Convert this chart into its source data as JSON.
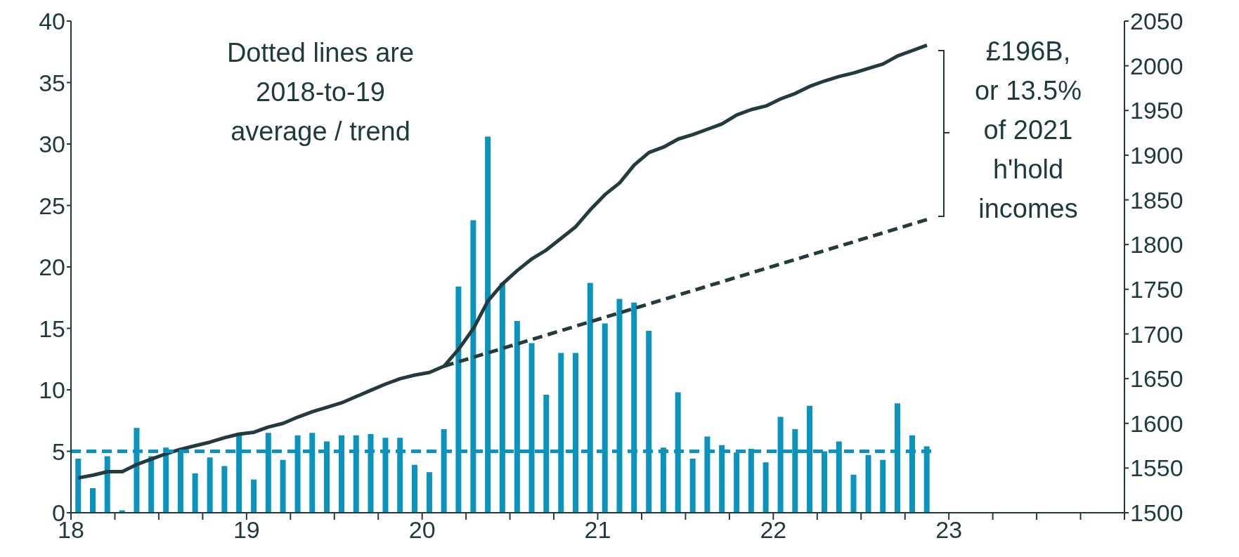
{
  "chart_data": {
    "type": "bar",
    "x": [
      2018.042,
      2018.125,
      2018.208,
      2018.292,
      2018.375,
      2018.458,
      2018.542,
      2018.625,
      2018.708,
      2018.792,
      2018.875,
      2018.958,
      2019.042,
      2019.125,
      2019.208,
      2019.292,
      2019.375,
      2019.458,
      2019.542,
      2019.625,
      2019.708,
      2019.792,
      2019.875,
      2019.958,
      2020.042,
      2020.125,
      2020.208,
      2020.292,
      2020.375,
      2020.458,
      2020.542,
      2020.625,
      2020.708,
      2020.792,
      2020.875,
      2020.958,
      2021.042,
      2021.125,
      2021.208,
      2021.292,
      2021.375,
      2021.458,
      2021.542,
      2021.625,
      2021.708,
      2021.792,
      2021.875,
      2021.958,
      2022.042,
      2022.125,
      2022.208,
      2022.292,
      2022.375,
      2022.458,
      2022.542,
      2022.625,
      2022.708,
      2022.792,
      2022.875
    ],
    "series": [
      {
        "color": "#0a93bd",
        "values": [
          4.4,
          2.0,
          4.6,
          0.2,
          6.9,
          4.6,
          5.3,
          5.0,
          3.2,
          4.5,
          3.8,
          6.5,
          2.7,
          6.5,
          4.3,
          6.3,
          6.5,
          5.8,
          6.3,
          6.3,
          6.4,
          6.1,
          6.1,
          3.9,
          3.3,
          6.8,
          18.4,
          23.8,
          30.6,
          18.7,
          15.6,
          13.8,
          9.6,
          13.0,
          13.0,
          18.7,
          15.4,
          17.4,
          17.1,
          14.8,
          5.3,
          9.8,
          4.4,
          6.2,
          5.5,
          4.9,
          5.2,
          4.1,
          7.8,
          6.8,
          8.7,
          5.0,
          5.8,
          3.1,
          4.7,
          4.3,
          8.9,
          6.3,
          5.4
        ]
      },
      {
        "type": "line",
        "axis": "y2",
        "color": "#243b3d",
        "values": [
          1539,
          1542,
          1546,
          1546,
          1554,
          1560,
          1566,
          1571,
          1575,
          1579,
          1584,
          1588,
          1590,
          1596,
          1600,
          1607,
          1613,
          1618,
          1623,
          1630,
          1637,
          1644,
          1650,
          1654,
          1657,
          1664,
          1683,
          1706,
          1737,
          1756,
          1771,
          1784,
          1794,
          1807,
          1820,
          1839,
          1856,
          1869,
          1889,
          1903,
          1909,
          1918,
          1923,
          1929,
          1935,
          1945,
          1951,
          1955,
          1963,
          1969,
          1977,
          1983,
          1988,
          1992,
          1997,
          2002,
          2011,
          2017,
          2023
        ]
      },
      {
        "type": "line",
        "axis": "y2",
        "color": "#243b3d",
        "line_style": "dashed",
        "x": [
          2020.125,
          2022.875
        ],
        "values": [
          1664,
          1828
        ]
      },
      {
        "type": "line",
        "color": "#0a93bd",
        "line_style": "dashed",
        "x": [
          2018,
          2022.92
        ],
        "values": [
          5,
          5
        ]
      }
    ],
    "xlim": [
      2018,
      2024
    ],
    "xticks": [
      {
        "value": 2018,
        "label": "18"
      },
      {
        "value": 2018.25,
        "label": null
      },
      {
        "value": 2018.5,
        "label": null
      },
      {
        "value": 2018.75,
        "label": null
      },
      {
        "value": 2019,
        "label": "19"
      },
      {
        "value": 2019.25,
        "label": null
      },
      {
        "value": 2019.5,
        "label": null
      },
      {
        "value": 2019.75,
        "label": null
      },
      {
        "value": 2020,
        "label": "20"
      },
      {
        "value": 2020.25,
        "label": null
      },
      {
        "value": 2020.5,
        "label": null
      },
      {
        "value": 2020.75,
        "label": null
      },
      {
        "value": 2021,
        "label": "21"
      },
      {
        "value": 2021.25,
        "label": null
      },
      {
        "value": 2021.5,
        "label": null
      },
      {
        "value": 2021.75,
        "label": null
      },
      {
        "value": 2022,
        "label": "22"
      },
      {
        "value": 2022.25,
        "label": null
      },
      {
        "value": 2022.5,
        "label": null
      },
      {
        "value": 2022.75,
        "label": null
      },
      {
        "value": 2023,
        "label": "23"
      },
      {
        "value": 2023.25,
        "label": null
      },
      {
        "value": 2023.5,
        "label": null
      },
      {
        "value": 2023.75,
        "label": null
      },
      {
        "value": 2024,
        "label": null
      }
    ],
    "ylim": [
      0,
      40
    ],
    "yticks": [
      0,
      5,
      10,
      15,
      20,
      25,
      30,
      35,
      40
    ],
    "y2lim": [
      1500,
      2050
    ],
    "y2ticks": [
      1500,
      1550,
      1600,
      1650,
      1700,
      1750,
      1800,
      1850,
      1900,
      1950,
      2000,
      2050
    ],
    "annotations": [
      "Dotted lines are 2018-to-19 average / trend",
      "£196B, or 13.5% of 2021 h'hold incomes"
    ]
  }
}
